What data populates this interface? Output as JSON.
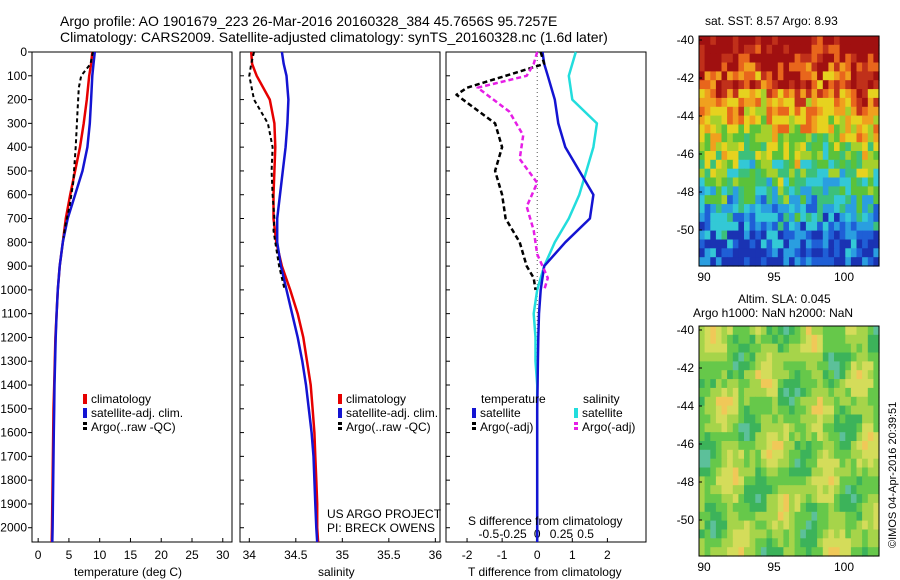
{
  "header": {
    "line1": "Argo profile: AO 1901679_223 26-Mar-2016 20160328_384 45.7656S 95.7257E",
    "line2": "Climatology: CARS2009. Satellite-adjusted climatology: synTS_20160328.nc (1.6d later)"
  },
  "colors": {
    "climatology": "#e60000",
    "satellite": "#1414d2",
    "argo": "#000000",
    "satellite_salinity": "#22dddd",
    "argo_adj_salinity": "#e61ee6"
  },
  "panels": {
    "temperature": {
      "xlabel": "temperature (deg C)",
      "xticks": [
        "0",
        "5",
        "10",
        "15",
        "20",
        "25",
        "30"
      ],
      "legend": [
        "climatology",
        "satellite-adj. clim.",
        "Argo(..raw -QC)"
      ]
    },
    "salinity": {
      "xlabel": "salinity",
      "xticks": [
        "34",
        "34.5",
        "35",
        "35.5",
        "36"
      ],
      "legend": [
        "climatology",
        "satellite-adj. clim.",
        "Argo(..raw -QC)"
      ],
      "credit1": "US ARGO PROJECT",
      "credit2": "PI: BRECK OWENS"
    },
    "difference": {
      "xlabel": "T difference from climatology",
      "toplabel": "S difference from climatology",
      "xticks_T": [
        "-2",
        "-1",
        "0",
        "1",
        "2"
      ],
      "xticks_S": [
        "-0.5",
        "-0.25",
        "0",
        "0.25",
        "0.5"
      ],
      "legend_temp_title": "temperature",
      "legend_sal_title": "salinity",
      "legend_sat": "satellite",
      "legend_argo_adj": "Argo(-adj)"
    },
    "depth_ticks": [
      "0",
      "100",
      "200",
      "300",
      "400",
      "500",
      "600",
      "700",
      "800",
      "900",
      "1000",
      "1100",
      "1200",
      "1300",
      "1400",
      "1500",
      "1600",
      "1700",
      "1800",
      "1900",
      "2000"
    ]
  },
  "maps": {
    "sst_title": "sat. SST: 8.57 Argo: 8.93",
    "sla_title1": "Altim. SLA: 0.045",
    "sla_title2": "Argo h1000: NaN h2000: NaN",
    "yticks": [
      "-40",
      "-42",
      "-44",
      "-46",
      "-48",
      "-50"
    ],
    "xticks": [
      "90",
      "95",
      "100"
    ],
    "footer": "©IMOS 04-Apr-2016 20:39:51"
  },
  "chart_data": [
    {
      "type": "line",
      "title": "",
      "xlabel": "temperature (deg C)",
      "ylabel": "",
      "xlim": [
        -1,
        31.5
      ],
      "ylim": [
        2060,
        0
      ],
      "series": [
        {
          "name": "climatology",
          "x": [
            8.8,
            8.6,
            8.3,
            7.9,
            7.4,
            6.8,
            6.0,
            5.2,
            4.5,
            4.0,
            3.5,
            3.2,
            3.0,
            2.8,
            2.7,
            2.6,
            2.5,
            2.45,
            2.4,
            2.35,
            2.3,
            2.25,
            2.2
          ],
          "y": [
            0,
            50,
            100,
            200,
            300,
            400,
            500,
            600,
            700,
            800,
            900,
            1000,
            1100,
            1200,
            1300,
            1400,
            1500,
            1600,
            1700,
            1800,
            1900,
            2000,
            2060
          ]
        },
        {
          "name": "satellite-adj. clim.",
          "x": [
            9.2,
            9.0,
            8.8,
            8.6,
            8.4,
            8.0,
            7.2,
            6.0,
            4.8,
            4.0,
            3.5,
            3.2,
            3.0,
            2.85,
            2.75,
            2.65,
            2.6,
            2.55,
            2.5,
            2.45,
            2.4,
            2.35,
            2.3
          ],
          "y": [
            0,
            50,
            100,
            200,
            300,
            400,
            500,
            600,
            700,
            800,
            900,
            1000,
            1100,
            1200,
            1300,
            1400,
            1500,
            1600,
            1700,
            1800,
            1900,
            2000,
            2060
          ]
        },
        {
          "name": "Argo(..raw -QC)",
          "x": [
            8.9,
            8.5,
            7.0,
            6.6,
            6.4,
            6.1,
            5.7,
            5.1,
            4.5,
            4.1
          ],
          "y": [
            0,
            50,
            100,
            150,
            250,
            400,
            550,
            650,
            720,
            780
          ]
        }
      ]
    },
    {
      "type": "line",
      "title": "",
      "xlabel": "salinity",
      "ylabel": "",
      "xlim": [
        33.9,
        36.05
      ],
      "ylim": [
        2060,
        0
      ],
      "series": [
        {
          "name": "climatology",
          "x": [
            34.02,
            34.03,
            34.08,
            34.22,
            34.27,
            34.28,
            34.27,
            34.26,
            34.26,
            34.29,
            34.35,
            34.44,
            34.52,
            34.58,
            34.62,
            34.66,
            34.68,
            34.7,
            34.71,
            34.72,
            34.73,
            34.73,
            34.74
          ],
          "y": [
            0,
            50,
            100,
            200,
            300,
            400,
            500,
            600,
            700,
            800,
            900,
            1000,
            1100,
            1200,
            1300,
            1400,
            1500,
            1600,
            1700,
            1800,
            1900,
            2000,
            2060
          ]
        },
        {
          "name": "satellite-adj. clim.",
          "x": [
            34.35,
            34.37,
            34.4,
            34.42,
            34.41,
            34.39,
            34.36,
            34.33,
            34.3,
            34.3,
            34.34,
            34.4,
            34.46,
            34.52,
            34.57,
            34.61,
            34.64,
            34.67,
            34.69,
            34.7,
            34.71,
            34.72,
            34.73
          ],
          "y": [
            0,
            50,
            100,
            200,
            300,
            400,
            500,
            600,
            700,
            800,
            900,
            1000,
            1100,
            1200,
            1300,
            1400,
            1500,
            1600,
            1700,
            1800,
            1900,
            2000,
            2060
          ]
        },
        {
          "name": "Argo(..raw -QC)",
          "x": [
            34.05,
            34.02,
            34.0,
            34.05,
            34.2,
            34.25,
            34.24,
            34.25,
            34.27,
            34.26,
            34.28,
            34.32,
            34.38
          ],
          "y": [
            0,
            50,
            100,
            200,
            300,
            400,
            500,
            600,
            700,
            750,
            800,
            900,
            1000
          ]
        }
      ]
    },
    {
      "type": "line",
      "title": "",
      "xlabel": "T difference from climatology",
      "ylabel": "",
      "xlim": [
        -2.6,
        3.1
      ],
      "ylim": [
        2060,
        0
      ],
      "series": [
        {
          "name": "temperature satellite",
          "x": [
            0.15,
            0.2,
            0.3,
            0.5,
            0.6,
            0.8,
            1.2,
            1.6,
            1.5,
            0.8,
            0.2,
            0.1,
            0.05,
            0.03,
            0.02,
            0.01,
            0.0,
            0.0,
            0.0,
            0.0,
            0.0,
            0.0,
            0.0
          ],
          "y": [
            0,
            50,
            100,
            200,
            300,
            400,
            500,
            600,
            700,
            800,
            900,
            1000,
            1100,
            1200,
            1300,
            1400,
            1500,
            1600,
            1700,
            1800,
            1900,
            2000,
            2060
          ]
        },
        {
          "name": "salinity satellite",
          "x": [
            1.1,
            1.0,
            0.9,
            1.0,
            1.7,
            1.6,
            1.4,
            1.2,
            0.9,
            0.5,
            0.2,
            0.0,
            -0.1,
            -0.05,
            -0.05,
            0.0,
            0.0,
            0.0,
            0.0,
            0.0,
            0.0,
            0.0,
            0.0
          ],
          "y": [
            0,
            50,
            100,
            200,
            300,
            400,
            500,
            600,
            700,
            800,
            900,
            1000,
            1100,
            1200,
            1300,
            1400,
            1500,
            1600,
            1700,
            1800,
            1900,
            2000,
            2060
          ]
        },
        {
          "name": "temperature Argo(-adj)",
          "x": [
            0.1,
            0.2,
            -2.0,
            -2.3,
            -1.2,
            -1.0,
            -1.2,
            -1.0,
            -0.9,
            -0.5,
            -0.3,
            -0.1,
            -0.05
          ],
          "y": [
            0,
            50,
            150,
            180,
            300,
            400,
            500,
            600,
            700,
            800,
            900,
            950,
            1000
          ]
        },
        {
          "name": "salinity Argo(-adj)",
          "x": [
            0.0,
            -0.1,
            -0.3,
            -1.7,
            -0.8,
            -0.4,
            -0.5,
            0.0,
            -0.3,
            -0.1,
            0.0,
            0.3,
            0.2
          ],
          "y": [
            0,
            50,
            100,
            150,
            250,
            350,
            450,
            550,
            650,
            750,
            850,
            950,
            1000
          ]
        }
      ]
    }
  ]
}
